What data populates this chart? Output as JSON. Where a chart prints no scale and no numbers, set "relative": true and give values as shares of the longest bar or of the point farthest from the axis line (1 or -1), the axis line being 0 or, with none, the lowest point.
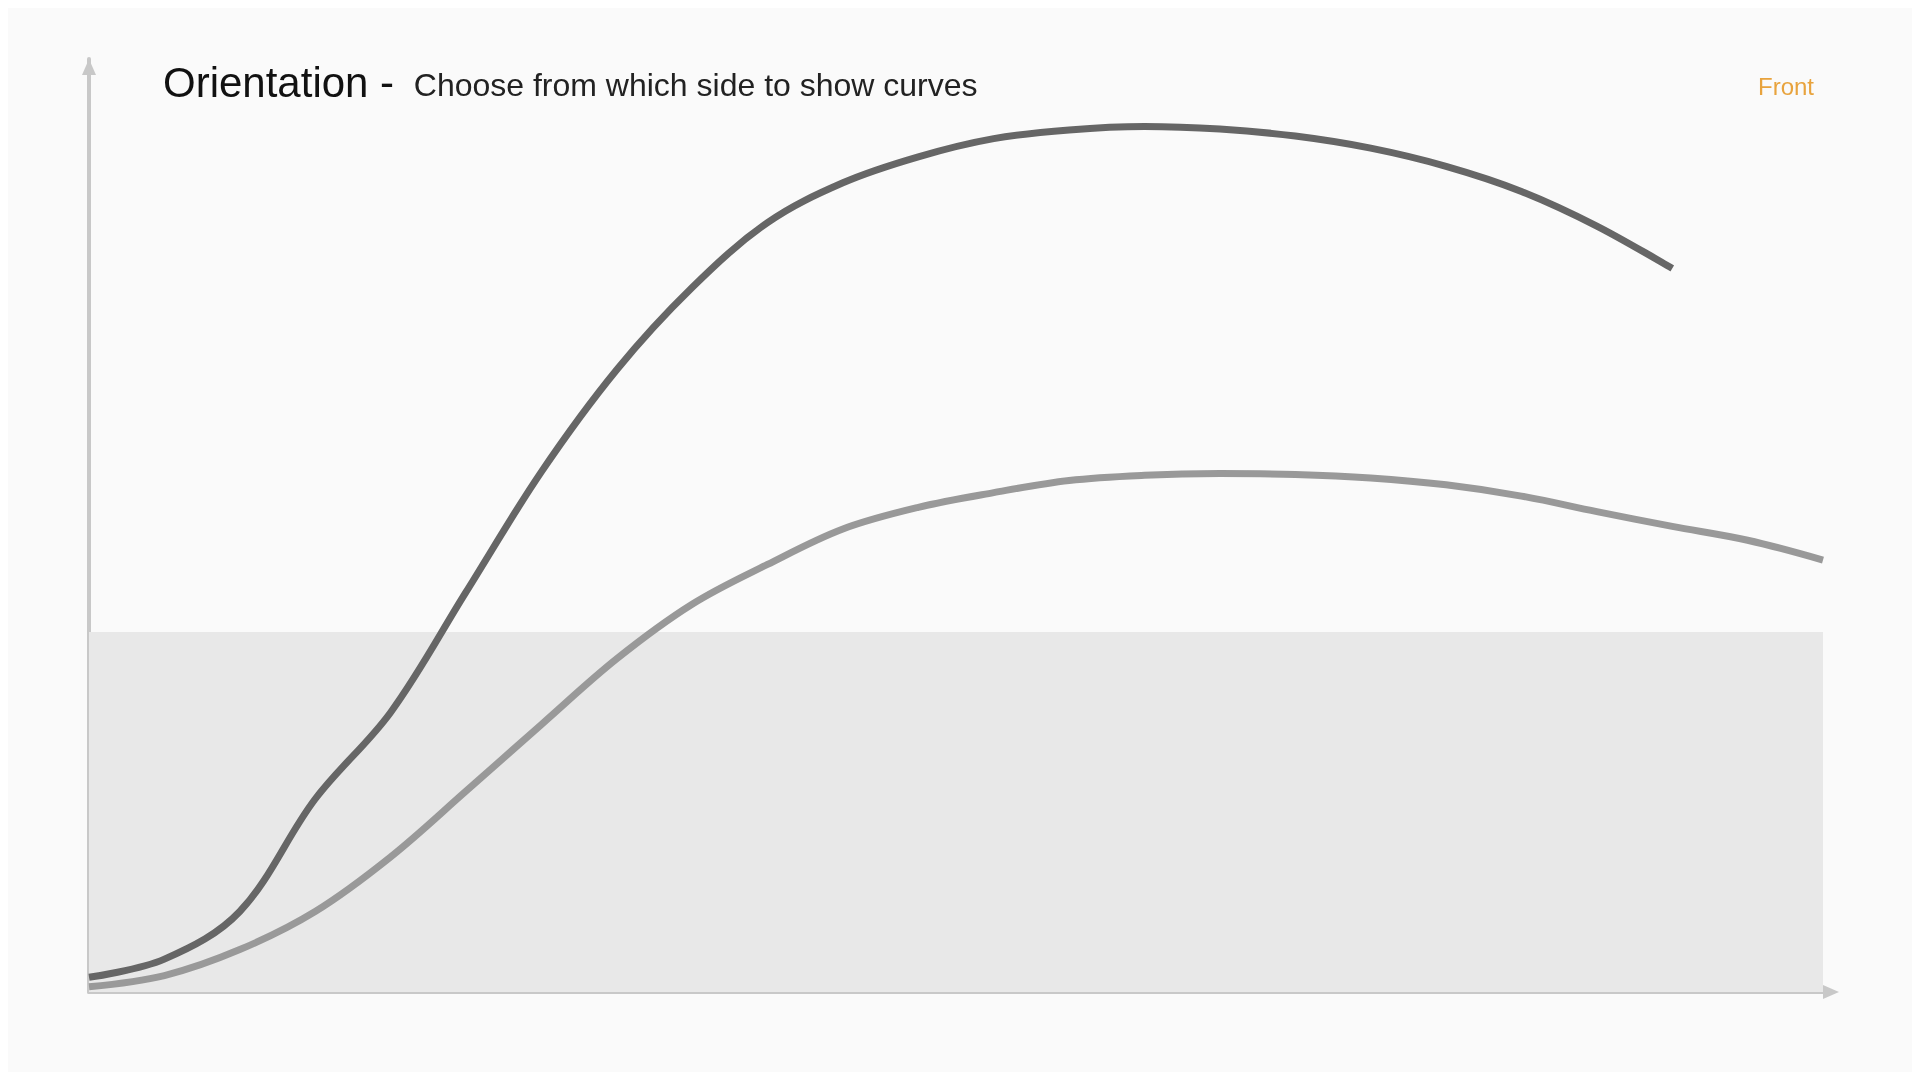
{
  "chart_data": {
    "type": "line",
    "title": "Orientation - ",
    "subtitle": "Choose from which side to show curves",
    "relative": true,
    "categories": [
      null,
      null,
      null,
      null,
      null,
      null,
      null,
      null,
      null,
      null,
      null,
      null,
      null,
      null,
      null,
      null,
      null,
      null,
      null,
      null,
      null,
      null,
      null,
      null
    ],
    "series": [
      {
        "color": "#666666",
        "values": [
          0.017,
          0.038,
          0.093,
          0.223,
          0.323,
          0.462,
          0.601,
          0.719,
          0.814,
          0.889,
          0.935,
          0.965,
          0.986,
          0.996,
          1.0,
          0.997,
          0.989,
          0.975,
          0.954,
          0.925,
          0.885,
          0.836,
          null,
          null
        ]
      },
      {
        "color": "#999999",
        "values": [
          0.006,
          0.019,
          0.049,
          0.093,
          0.156,
          0.232,
          0.309,
          0.385,
          0.448,
          0.494,
          0.535,
          0.56,
          0.577,
          0.591,
          0.597,
          0.599,
          0.598,
          0.594,
          0.586,
          0.573,
          0.555,
          0.538,
          0.522,
          0.499
        ]
      }
    ],
    "bands": [
      {
        "axis": "y",
        "from": 0,
        "to": 0.416,
        "color": "#e8e8e8"
      }
    ],
    "annotations": [
      "Front"
    ],
    "marker": "none",
    "line_style": "solid",
    "grid": false
  }
}
